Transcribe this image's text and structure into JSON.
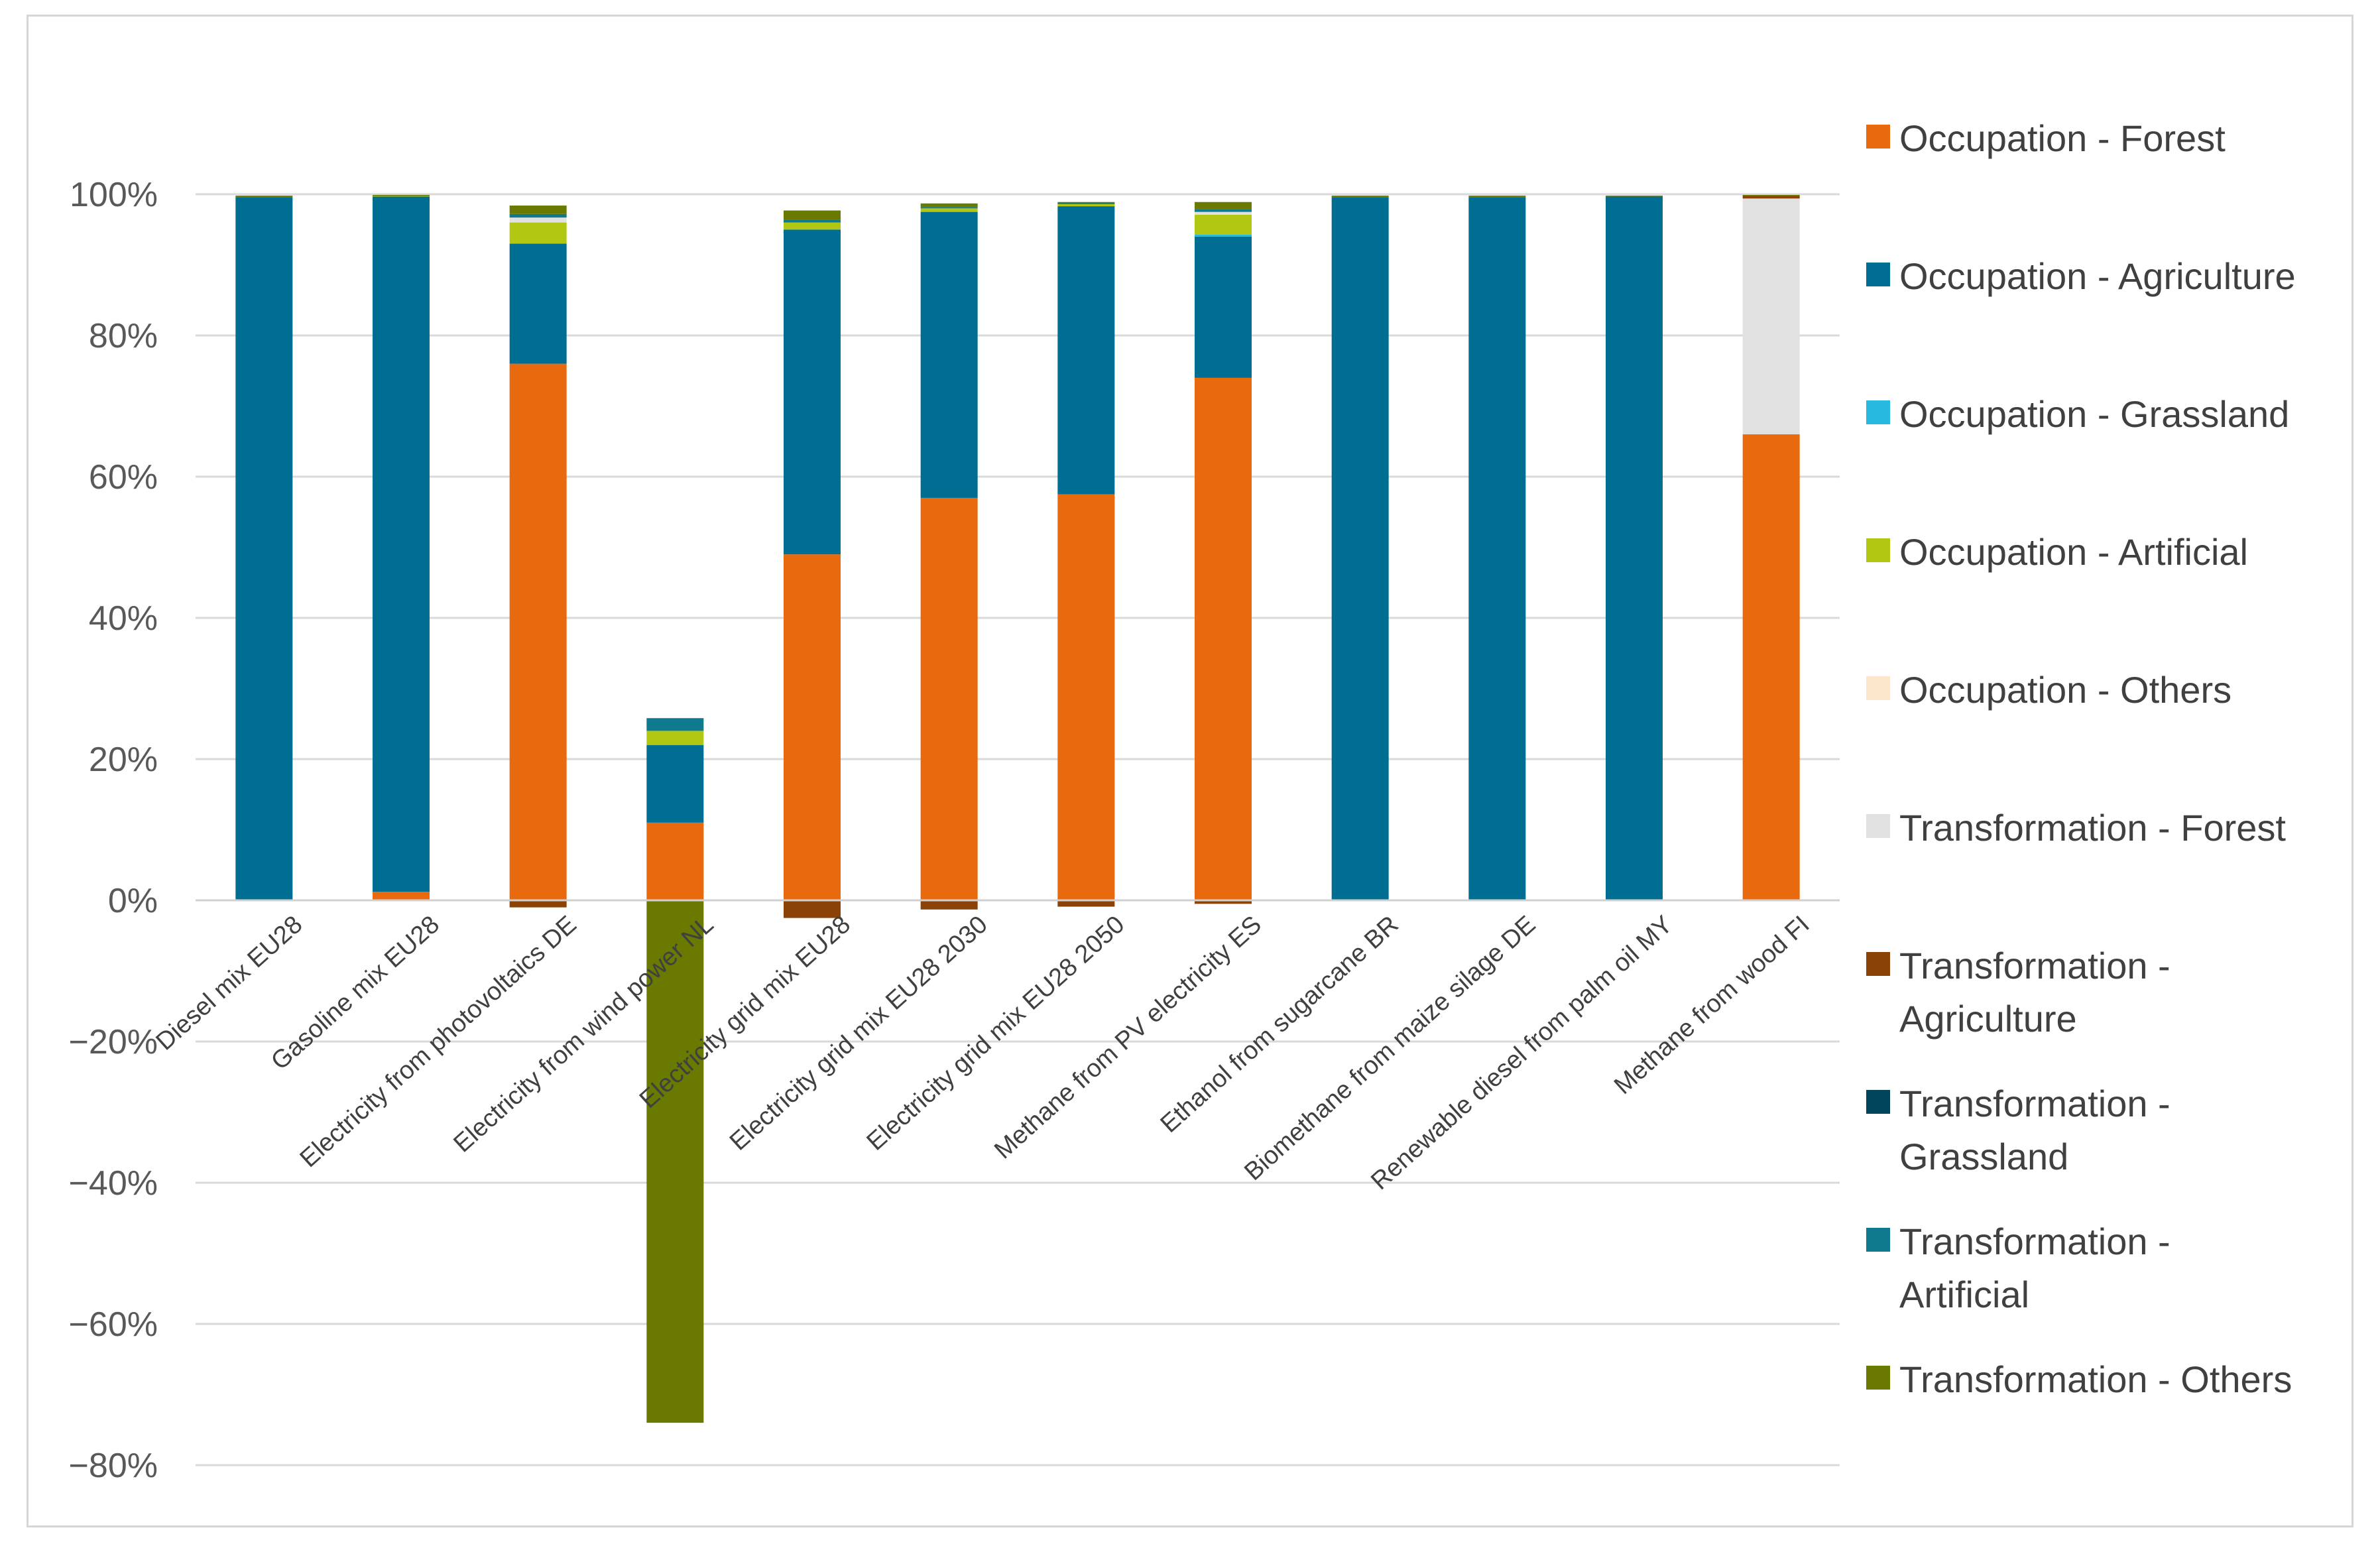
{
  "chart_data": {
    "type": "bar",
    "stacked": true,
    "categories": [
      "Diesel mix EU28",
      "Gasoline mix EU28",
      "Electricity from photovoltaics DE",
      "Electricity from wind power NL",
      "Electricity grid mix EU28",
      "Electricity grid mix EU28 2030",
      "Electricity grid mix EU28 2050",
      "Methane from PV electricity ES",
      "Ethanol from sugarcane BR",
      "Biomethane from maize silage DE",
      "Renewable diesel from palm oil MY",
      "Methane from wood FI"
    ],
    "ylim": [
      -80,
      100
    ],
    "yticks": [
      -80,
      -60,
      -40,
      -20,
      0,
      20,
      40,
      60,
      80,
      100
    ],
    "ytick_labels": [
      "−80%",
      "−60%",
      "−40%",
      "−20%",
      "0%",
      "20%",
      "40%",
      "60%",
      "80%",
      "100%"
    ],
    "grid": true,
    "legend_position": "right",
    "series": [
      {
        "name": "Occupation -  Forest",
        "color": "#E8690E",
        "values": [
          0,
          1.2,
          76,
          11,
          49,
          57,
          57.5,
          74,
          0,
          0,
          0,
          66
        ]
      },
      {
        "name": "Occupation -  Agriculture",
        "color": "#006E93",
        "values": [
          99.6,
          98.5,
          17,
          11,
          46,
          40.5,
          40.8,
          20,
          99.6,
          99.6,
          99.7,
          0
        ]
      },
      {
        "name": "Occupation -  Grassland",
        "color": "#27B9E0",
        "values": [
          0,
          0,
          0,
          0,
          0,
          0,
          0,
          0.3,
          0,
          0,
          0,
          0
        ]
      },
      {
        "name": "Occupation -  Artificial",
        "color": "#B1C712",
        "values": [
          0,
          0.1,
          3,
          2,
          1,
          0.5,
          0.3,
          2.8,
          0,
          0,
          0,
          0
        ]
      },
      {
        "name": "Occupation -  Others",
        "color": "#FCE6CC",
        "values": [
          0,
          0,
          0,
          0,
          0,
          0,
          0,
          0,
          0,
          0,
          0,
          0
        ]
      },
      {
        "name": "Transformation -  Forest",
        "color": "#E1E1E1",
        "values": [
          0,
          0,
          0.7,
          0,
          0,
          0,
          0,
          0.4,
          0,
          0,
          0,
          33.4
        ]
      },
      {
        "name": "Transformation - Agriculture",
        "color": "#8A4206",
        "values": [
          0,
          0,
          -1,
          0,
          -2.5,
          -1.3,
          -0.9,
          -0.5,
          0,
          0,
          0,
          0.4
        ]
      },
      {
        "name": "Transformation - Grassland",
        "color": "#00455A",
        "values": [
          0,
          0,
          0,
          0,
          0,
          0,
          0,
          0,
          0,
          0,
          0,
          0
        ]
      },
      {
        "name": "Transformation - Artificial",
        "color": "#0F7A8E",
        "values": [
          0,
          0,
          0.5,
          1.8,
          0.4,
          0.2,
          0.2,
          0.4,
          0,
          0,
          0,
          0
        ]
      },
      {
        "name": "Transformation -  Others",
        "color": "#6A7A00",
        "values": [
          0.2,
          0.1,
          1.2,
          -74,
          1.3,
          0.5,
          0.1,
          1,
          0.2,
          0.2,
          0.1,
          0.1
        ]
      }
    ],
    "legend": [
      {
        "lines": [
          "Occupation -  Forest"
        ],
        "color": "#E8690E"
      },
      {
        "lines": [
          "Occupation -  Agriculture"
        ],
        "color": "#006E93"
      },
      {
        "lines": [
          "Occupation -  Grassland"
        ],
        "color": "#27B9E0"
      },
      {
        "lines": [
          "Occupation -  Artificial"
        ],
        "color": "#B1C712"
      },
      {
        "lines": [
          "Occupation -  Others"
        ],
        "color": "#FCE6CC"
      },
      {
        "lines": [
          "Transformation -  Forest"
        ],
        "color": "#E1E1E1"
      },
      {
        "lines": [
          "Transformation -",
          "Agriculture"
        ],
        "color": "#8A4206"
      },
      {
        "lines": [
          "Transformation -",
          "Grassland"
        ],
        "color": "#00455A"
      },
      {
        "lines": [
          "Transformation -",
          "Artificial"
        ],
        "color": "#0F7A8E"
      },
      {
        "lines": [
          "Transformation -  Others"
        ],
        "color": "#6A7A00"
      }
    ]
  }
}
